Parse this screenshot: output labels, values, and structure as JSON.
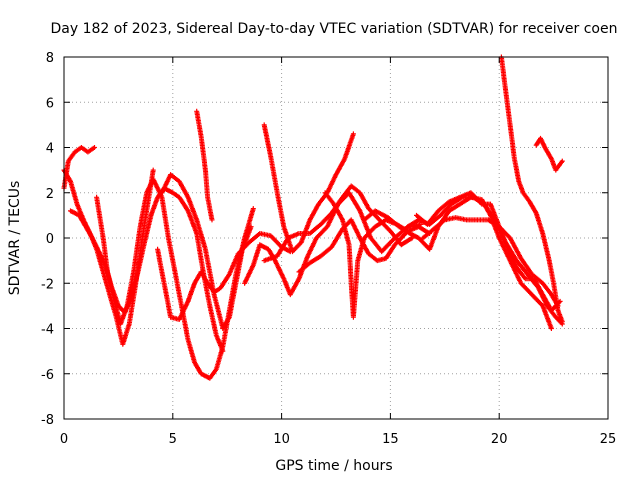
{
  "chart_data": {
    "type": "scatter",
    "title": "Day 182 of 2023, Sidereal Day-to-day VTEC variation (SDTVAR) for receiver coen",
    "xlabel": "GPS time / hours",
    "ylabel": "SDTVAR / TECUs",
    "xlim": [
      0,
      25
    ],
    "ylim": [
      -8,
      8
    ],
    "xticks": [
      0,
      5,
      10,
      15,
      20,
      25
    ],
    "yticks": [
      -8,
      -6,
      -4,
      -2,
      0,
      2,
      4,
      6,
      8
    ],
    "grid": true,
    "marker": "+",
    "color": "#ff0000",
    "series": [
      {
        "name": "trace-1",
        "points": [
          [
            0.0,
            2.2
          ],
          [
            0.2,
            3.4
          ],
          [
            0.5,
            3.8
          ],
          [
            0.8,
            4.0
          ],
          [
            1.1,
            3.8
          ],
          [
            1.4,
            4.0
          ]
        ]
      },
      {
        "name": "trace-2",
        "points": [
          [
            0.0,
            3.0
          ],
          [
            0.3,
            2.5
          ],
          [
            0.6,
            1.5
          ],
          [
            0.9,
            0.8
          ],
          [
            1.2,
            0.2
          ],
          [
            1.5,
            -0.5
          ],
          [
            1.8,
            -1.5
          ],
          [
            2.1,
            -2.5
          ],
          [
            2.4,
            -3.5
          ],
          [
            2.7,
            -4.7
          ],
          [
            3.0,
            -3.8
          ],
          [
            3.3,
            -2.0
          ],
          [
            3.6,
            0.0
          ],
          [
            3.9,
            1.8
          ],
          [
            4.1,
            3.0
          ]
        ]
      },
      {
        "name": "trace-3",
        "points": [
          [
            0.3,
            1.2
          ],
          [
            0.7,
            1.0
          ],
          [
            1.0,
            0.5
          ],
          [
            1.3,
            0.0
          ],
          [
            1.6,
            -0.6
          ],
          [
            1.9,
            -1.2
          ],
          [
            2.2,
            -2.2
          ],
          [
            2.5,
            -3.0
          ],
          [
            2.8,
            -3.3
          ],
          [
            3.1,
            -2.6
          ],
          [
            3.4,
            -1.5
          ],
          [
            3.7,
            -0.2
          ],
          [
            4.0,
            1.0
          ],
          [
            4.3,
            1.8
          ],
          [
            4.6,
            2.2
          ],
          [
            5.0,
            2.0
          ],
          [
            5.3,
            1.8
          ],
          [
            5.7,
            1.2
          ],
          [
            6.1,
            0.2
          ],
          [
            6.4,
            -1.5
          ],
          [
            6.7,
            -3.0
          ],
          [
            7.0,
            -4.3
          ],
          [
            7.3,
            -5.0
          ]
        ]
      },
      {
        "name": "trace-4",
        "points": [
          [
            1.5,
            1.8
          ],
          [
            1.8,
            0.0
          ],
          [
            2.0,
            -1.5
          ],
          [
            2.3,
            -2.7
          ],
          [
            2.6,
            -3.8
          ],
          [
            2.9,
            -3.0
          ],
          [
            3.2,
            -1.5
          ],
          [
            3.5,
            0.5
          ],
          [
            3.8,
            2.0
          ],
          [
            4.1,
            2.6
          ],
          [
            4.5,
            1.8
          ],
          [
            4.8,
            0.0
          ],
          [
            5.1,
            -1.5
          ],
          [
            5.4,
            -3.0
          ],
          [
            5.7,
            -4.5
          ],
          [
            6.0,
            -5.5
          ],
          [
            6.3,
            -6.0
          ],
          [
            6.7,
            -6.2
          ],
          [
            7.0,
            -5.8
          ],
          [
            7.3,
            -4.8
          ],
          [
            7.6,
            -3.2
          ],
          [
            7.9,
            -1.6
          ],
          [
            8.3,
            0.0
          ],
          [
            8.7,
            1.3
          ]
        ]
      },
      {
        "name": "trace-5",
        "points": [
          [
            4.3,
            -0.5
          ],
          [
            4.6,
            -2.0
          ],
          [
            4.9,
            -3.5
          ],
          [
            5.3,
            -3.6
          ],
          [
            5.7,
            -2.8
          ],
          [
            6.0,
            -2.0
          ],
          [
            6.3,
            -1.5
          ],
          [
            6.6,
            -2.0
          ],
          [
            6.9,
            -2.4
          ],
          [
            7.2,
            -2.2
          ],
          [
            7.6,
            -1.6
          ],
          [
            8.0,
            -0.7
          ],
          [
            8.5,
            -0.2
          ],
          [
            9.0,
            0.2
          ],
          [
            9.5,
            0.1
          ],
          [
            10.0,
            -0.4
          ],
          [
            10.4,
            -0.6
          ]
        ]
      },
      {
        "name": "trace-6",
        "points": [
          [
            4.5,
            2.0
          ],
          [
            4.9,
            2.8
          ],
          [
            5.3,
            2.5
          ],
          [
            5.7,
            1.8
          ],
          [
            6.1,
            0.8
          ],
          [
            6.5,
            -0.5
          ],
          [
            6.9,
            -2.5
          ],
          [
            7.3,
            -4.0
          ],
          [
            7.6,
            -3.5
          ],
          [
            7.9,
            -2.0
          ],
          [
            8.2,
            -0.5
          ],
          [
            8.6,
            0.5
          ]
        ]
      },
      {
        "name": "trace-7",
        "points": [
          [
            6.1,
            5.6
          ],
          [
            6.3,
            4.5
          ],
          [
            6.5,
            3.0
          ],
          [
            6.6,
            1.8
          ],
          [
            6.8,
            0.8
          ]
        ]
      },
      {
        "name": "trace-8",
        "points": [
          [
            9.2,
            5.0
          ],
          [
            9.5,
            3.6
          ],
          [
            9.8,
            2.0
          ],
          [
            10.1,
            0.5
          ],
          [
            10.5,
            -0.6
          ],
          [
            10.9,
            -0.2
          ],
          [
            11.3,
            0.8
          ],
          [
            11.7,
            1.5
          ],
          [
            12.1,
            2.0
          ],
          [
            12.5,
            2.8
          ],
          [
            12.9,
            3.5
          ],
          [
            13.3,
            4.6
          ]
        ]
      },
      {
        "name": "trace-9",
        "points": [
          [
            8.3,
            -2.0
          ],
          [
            8.7,
            -1.2
          ],
          [
            9.0,
            -0.3
          ],
          [
            9.4,
            -0.5
          ],
          [
            9.7,
            -1.0
          ],
          [
            10.1,
            -1.8
          ],
          [
            10.4,
            -2.5
          ],
          [
            10.8,
            -1.8
          ],
          [
            11.2,
            -0.8
          ],
          [
            11.6,
            0.0
          ],
          [
            12.1,
            0.5
          ],
          [
            12.6,
            1.5
          ],
          [
            13.1,
            2.0
          ],
          [
            13.6,
            1.2
          ],
          [
            14.1,
            0.0
          ],
          [
            14.6,
            -0.6
          ],
          [
            15.2,
            0.0
          ],
          [
            15.8,
            0.5
          ],
          [
            16.4,
            0.6
          ]
        ]
      },
      {
        "name": "trace-10",
        "points": [
          [
            9.2,
            -1.0
          ],
          [
            9.8,
            -0.8
          ],
          [
            10.3,
            0.0
          ],
          [
            10.8,
            0.2
          ],
          [
            11.3,
            0.2
          ],
          [
            11.8,
            0.6
          ],
          [
            12.3,
            1.1
          ],
          [
            12.8,
            1.8
          ],
          [
            13.2,
            2.3
          ],
          [
            13.6,
            2.0
          ],
          [
            14.0,
            1.3
          ],
          [
            14.5,
            0.8
          ],
          [
            15.0,
            0.3
          ],
          [
            15.5,
            -0.3
          ],
          [
            16.0,
            0.0
          ]
        ]
      },
      {
        "name": "trace-11",
        "points": [
          [
            10.8,
            -1.5
          ],
          [
            11.3,
            -1.1
          ],
          [
            11.8,
            -0.8
          ],
          [
            12.3,
            -0.4
          ],
          [
            12.8,
            0.4
          ],
          [
            13.2,
            0.8
          ],
          [
            13.6,
            0.0
          ],
          [
            14.0,
            -0.7
          ],
          [
            14.4,
            -1.0
          ],
          [
            14.8,
            -0.9
          ],
          [
            15.2,
            -0.3
          ],
          [
            15.7,
            0.2
          ]
        ]
      },
      {
        "name": "trace-12",
        "points": [
          [
            12.0,
            2.0
          ],
          [
            12.4,
            1.5
          ],
          [
            12.8,
            0.8
          ],
          [
            13.1,
            -0.3
          ],
          [
            13.2,
            -2.0
          ],
          [
            13.3,
            -3.5
          ],
          [
            13.5,
            -1.0
          ],
          [
            13.8,
            0.0
          ],
          [
            14.3,
            0.5
          ],
          [
            14.8,
            0.8
          ],
          [
            15.3,
            0.6
          ],
          [
            15.8,
            0.3
          ],
          [
            16.3,
            0.5
          ],
          [
            16.8,
            0.2
          ]
        ]
      },
      {
        "name": "trace-13",
        "points": [
          [
            13.8,
            0.8
          ],
          [
            14.3,
            1.2
          ],
          [
            14.9,
            0.9
          ],
          [
            15.4,
            0.5
          ],
          [
            15.9,
            0.2
          ],
          [
            16.3,
            0.0
          ],
          [
            16.8,
            -0.5
          ],
          [
            17.2,
            0.5
          ],
          [
            17.7,
            1.2
          ],
          [
            18.2,
            1.5
          ],
          [
            18.7,
            1.8
          ],
          [
            19.2,
            1.7
          ],
          [
            19.6,
            1.0
          ],
          [
            20.0,
            0.0
          ],
          [
            20.5,
            -1.0
          ],
          [
            21.0,
            -2.0
          ],
          [
            21.5,
            -2.5
          ],
          [
            22.0,
            -3.0
          ],
          [
            22.4,
            -4.0
          ]
        ]
      },
      {
        "name": "trace-14",
        "points": [
          [
            15.8,
            0.5
          ],
          [
            16.3,
            0.8
          ],
          [
            16.8,
            0.6
          ],
          [
            17.3,
            1.0
          ],
          [
            17.8,
            1.5
          ],
          [
            18.3,
            1.8
          ],
          [
            18.8,
            1.8
          ],
          [
            19.3,
            1.5
          ],
          [
            19.8,
            0.8
          ],
          [
            20.3,
            -0.2
          ],
          [
            20.8,
            -1.0
          ],
          [
            21.3,
            -1.6
          ],
          [
            21.8,
            -2.2
          ],
          [
            22.2,
            -3.0
          ],
          [
            22.6,
            -3.5
          ],
          [
            22.9,
            -3.8
          ]
        ]
      },
      {
        "name": "trace-15",
        "points": [
          [
            16.5,
            0.0
          ],
          [
            17.0,
            0.4
          ],
          [
            17.5,
            0.8
          ],
          [
            18.0,
            0.9
          ],
          [
            18.5,
            0.8
          ],
          [
            19.0,
            0.8
          ],
          [
            19.5,
            0.8
          ],
          [
            20.0,
            0.5
          ],
          [
            20.5,
            0.0
          ],
          [
            21.0,
            -0.9
          ],
          [
            21.5,
            -1.6
          ],
          [
            22.0,
            -2.0
          ],
          [
            22.4,
            -2.5
          ],
          [
            22.7,
            -3.0
          ]
        ]
      },
      {
        "name": "trace-16",
        "points": [
          [
            16.2,
            1.0
          ],
          [
            16.7,
            0.6
          ],
          [
            17.2,
            1.2
          ],
          [
            17.7,
            1.6
          ],
          [
            18.2,
            1.8
          ],
          [
            18.7,
            2.0
          ],
          [
            19.2,
            1.5
          ],
          [
            19.6,
            1.5
          ],
          [
            20.0,
            0.5
          ],
          [
            20.4,
            -0.5
          ],
          [
            20.8,
            -1.3
          ],
          [
            21.2,
            -1.8
          ],
          [
            21.6,
            -1.8
          ],
          [
            22.0,
            -2.5
          ],
          [
            22.4,
            -3.2
          ],
          [
            22.8,
            -2.8
          ]
        ]
      },
      {
        "name": "trace-17",
        "points": [
          [
            20.1,
            8.0
          ],
          [
            20.3,
            6.5
          ],
          [
            20.5,
            5.0
          ],
          [
            20.7,
            3.5
          ],
          [
            20.9,
            2.5
          ],
          [
            21.1,
            2.0
          ],
          [
            21.4,
            1.6
          ],
          [
            21.7,
            1.1
          ],
          [
            22.0,
            0.2
          ],
          [
            22.3,
            -1.0
          ],
          [
            22.5,
            -2.0
          ],
          [
            22.7,
            -3.2
          ],
          [
            22.9,
            -3.7
          ]
        ]
      },
      {
        "name": "trace-18",
        "points": [
          [
            21.7,
            4.1
          ],
          [
            21.9,
            4.4
          ],
          [
            22.1,
            4.0
          ],
          [
            22.4,
            3.5
          ],
          [
            22.6,
            3.0
          ],
          [
            22.9,
            3.4
          ]
        ]
      }
    ]
  }
}
